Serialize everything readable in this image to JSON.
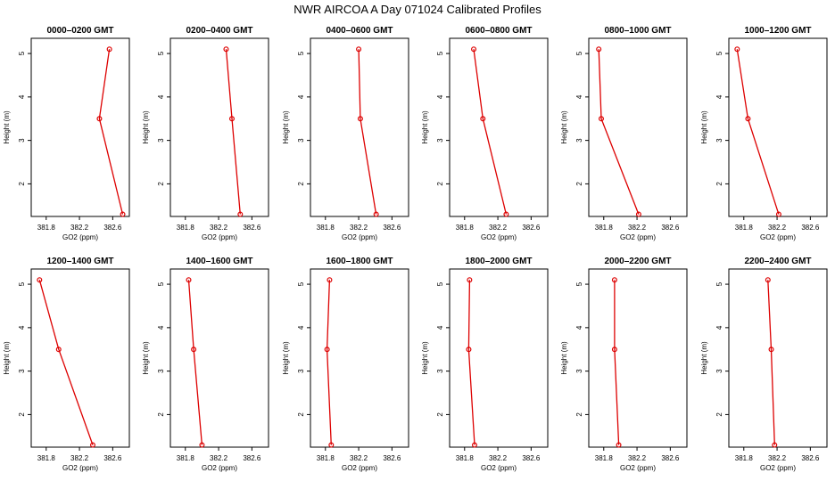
{
  "figure": {
    "title": "NWR AIRCOA A  Day 071024  Calibrated Profiles"
  },
  "colors": {
    "series": "#dd0000",
    "axes": "#000000",
    "background": "#ffffff"
  },
  "chart_data": [
    {
      "type": "line",
      "title": "0000–0200 GMT",
      "xlabel": "GO2 (ppm)",
      "ylabel": "Height (m)",
      "xlim": [
        381.62,
        382.8
      ],
      "ylim": [
        1.25,
        5.35
      ],
      "xticks": [
        "381.8",
        "382.2",
        "382.6"
      ],
      "yticks": [
        "2",
        "3",
        "4",
        "5"
      ],
      "grid": false,
      "series": [
        {
          "points": [
            {
              "x": 382.56,
              "y": 5.1
            },
            {
              "x": 382.44,
              "y": 3.5
            },
            {
              "x": 382.72,
              "y": 1.3
            }
          ]
        }
      ]
    },
    {
      "type": "line",
      "title": "0200–0400 GMT",
      "xlabel": "GO2 (ppm)",
      "ylabel": "Height (m)",
      "xlim": [
        381.62,
        382.8
      ],
      "ylim": [
        1.25,
        5.35
      ],
      "xticks": [
        "381.8",
        "382.2",
        "382.6"
      ],
      "yticks": [
        "2",
        "3",
        "4",
        "5"
      ],
      "grid": false,
      "series": [
        {
          "points": [
            {
              "x": 382.29,
              "y": 5.1
            },
            {
              "x": 382.36,
              "y": 3.5
            },
            {
              "x": 382.46,
              "y": 1.3
            }
          ]
        }
      ]
    },
    {
      "type": "line",
      "title": "0400–0600 GMT",
      "xlabel": "GO2 (ppm)",
      "ylabel": "Height (m)",
      "xlim": [
        381.62,
        382.8
      ],
      "ylim": [
        1.25,
        5.35
      ],
      "xticks": [
        "381.8",
        "382.2",
        "382.6"
      ],
      "yticks": [
        "2",
        "3",
        "4",
        "5"
      ],
      "grid": false,
      "series": [
        {
          "points": [
            {
              "x": 382.2,
              "y": 5.1
            },
            {
              "x": 382.22,
              "y": 3.5
            },
            {
              "x": 382.41,
              "y": 1.3
            }
          ]
        }
      ]
    },
    {
      "type": "line",
      "title": "0600–0800 GMT",
      "xlabel": "GO2 (ppm)",
      "ylabel": "Height (m)",
      "xlim": [
        381.62,
        382.8
      ],
      "ylim": [
        1.25,
        5.35
      ],
      "xticks": [
        "381.8",
        "382.2",
        "382.6"
      ],
      "yticks": [
        "2",
        "3",
        "4",
        "5"
      ],
      "grid": false,
      "series": [
        {
          "points": [
            {
              "x": 381.91,
              "y": 5.1
            },
            {
              "x": 382.02,
              "y": 3.5
            },
            {
              "x": 382.3,
              "y": 1.3
            }
          ]
        }
      ]
    },
    {
      "type": "line",
      "title": "0800–1000 GMT",
      "xlabel": "GO2 (ppm)",
      "ylabel": "Height (m)",
      "xlim": [
        381.62,
        382.8
      ],
      "ylim": [
        1.25,
        5.35
      ],
      "xticks": [
        "381.8",
        "382.2",
        "382.6"
      ],
      "yticks": [
        "2",
        "3",
        "4",
        "5"
      ],
      "grid": false,
      "series": [
        {
          "points": [
            {
              "x": 381.74,
              "y": 5.1
            },
            {
              "x": 381.77,
              "y": 3.5
            },
            {
              "x": 382.22,
              "y": 1.3
            }
          ]
        }
      ]
    },
    {
      "type": "line",
      "title": "1000–1200 GMT",
      "xlabel": "GO2 (ppm)",
      "ylabel": "Height (m)",
      "xlim": [
        381.62,
        382.8
      ],
      "ylim": [
        1.25,
        5.35
      ],
      "xticks": [
        "381.8",
        "382.2",
        "382.6"
      ],
      "yticks": [
        "2",
        "3",
        "4",
        "5"
      ],
      "grid": false,
      "series": [
        {
          "points": [
            {
              "x": 381.72,
              "y": 5.1
            },
            {
              "x": 381.85,
              "y": 3.5
            },
            {
              "x": 382.22,
              "y": 1.3
            }
          ]
        }
      ]
    },
    {
      "type": "line",
      "title": "1200–1400 GMT",
      "xlabel": "GO2 (ppm)",
      "ylabel": "Height (m)",
      "xlim": [
        381.62,
        382.8
      ],
      "ylim": [
        1.25,
        5.35
      ],
      "xticks": [
        "381.8",
        "382.2",
        "382.6"
      ],
      "yticks": [
        "2",
        "3",
        "4",
        "5"
      ],
      "grid": false,
      "series": [
        {
          "points": [
            {
              "x": 381.72,
              "y": 5.1
            },
            {
              "x": 381.95,
              "y": 3.5
            },
            {
              "x": 382.36,
              "y": 1.3
            }
          ]
        }
      ]
    },
    {
      "type": "line",
      "title": "1400–1600 GMT",
      "xlabel": "GO2 (ppm)",
      "ylabel": "Height (m)",
      "xlim": [
        381.62,
        382.8
      ],
      "ylim": [
        1.25,
        5.35
      ],
      "xticks": [
        "381.8",
        "382.2",
        "382.6"
      ],
      "yticks": [
        "2",
        "3",
        "4",
        "5"
      ],
      "grid": false,
      "series": [
        {
          "points": [
            {
              "x": 381.84,
              "y": 5.1
            },
            {
              "x": 381.9,
              "y": 3.5
            },
            {
              "x": 382.0,
              "y": 1.3
            }
          ]
        }
      ]
    },
    {
      "type": "line",
      "title": "1600–1800 GMT",
      "xlabel": "GO2 (ppm)",
      "ylabel": "Height (m)",
      "xlim": [
        381.62,
        382.8
      ],
      "ylim": [
        1.25,
        5.35
      ],
      "xticks": [
        "381.8",
        "382.2",
        "382.6"
      ],
      "yticks": [
        "2",
        "3",
        "4",
        "5"
      ],
      "grid": false,
      "series": [
        {
          "points": [
            {
              "x": 381.85,
              "y": 5.1
            },
            {
              "x": 381.82,
              "y": 3.5
            },
            {
              "x": 381.87,
              "y": 1.3
            }
          ]
        }
      ]
    },
    {
      "type": "line",
      "title": "1800–2000 GMT",
      "xlabel": "GO2 (ppm)",
      "ylabel": "Height (m)",
      "xlim": [
        381.62,
        382.8
      ],
      "ylim": [
        1.25,
        5.35
      ],
      "xticks": [
        "381.8",
        "382.2",
        "382.6"
      ],
      "yticks": [
        "2",
        "3",
        "4",
        "5"
      ],
      "grid": false,
      "series": [
        {
          "points": [
            {
              "x": 381.86,
              "y": 5.1
            },
            {
              "x": 381.85,
              "y": 3.5
            },
            {
              "x": 381.92,
              "y": 1.3
            }
          ]
        }
      ]
    },
    {
      "type": "line",
      "title": "2000–2200 GMT",
      "xlabel": "GO2 (ppm)",
      "ylabel": "Height (m)",
      "xlim": [
        381.62,
        382.8
      ],
      "ylim": [
        1.25,
        5.35
      ],
      "xticks": [
        "381.8",
        "382.2",
        "382.6"
      ],
      "yticks": [
        "2",
        "3",
        "4",
        "5"
      ],
      "grid": false,
      "series": [
        {
          "points": [
            {
              "x": 381.93,
              "y": 5.1
            },
            {
              "x": 381.93,
              "y": 3.5
            },
            {
              "x": 381.98,
              "y": 1.3
            }
          ]
        }
      ]
    },
    {
      "type": "line",
      "title": "2200–2400 GMT",
      "xlabel": "GO2 (ppm)",
      "ylabel": "Height (m)",
      "xlim": [
        381.62,
        382.8
      ],
      "ylim": [
        1.25,
        5.35
      ],
      "xticks": [
        "381.8",
        "382.2",
        "382.6"
      ],
      "yticks": [
        "2",
        "3",
        "4",
        "5"
      ],
      "grid": false,
      "series": [
        {
          "points": [
            {
              "x": 382.09,
              "y": 5.1
            },
            {
              "x": 382.13,
              "y": 3.5
            },
            {
              "x": 382.17,
              "y": 1.3
            }
          ]
        }
      ]
    }
  ]
}
